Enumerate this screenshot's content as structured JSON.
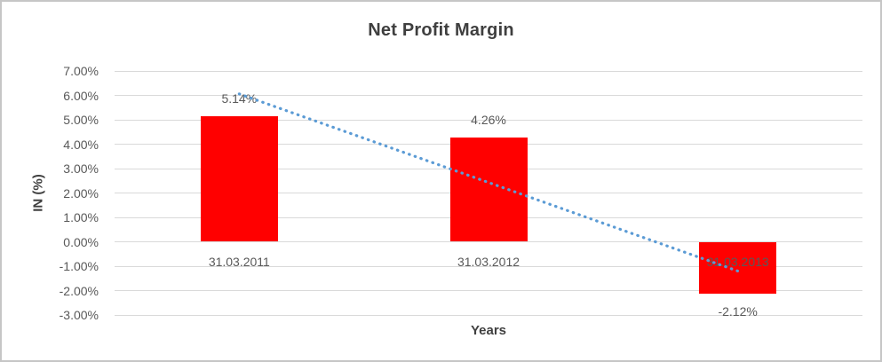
{
  "chart_data": {
    "type": "bar",
    "title": "Net Profit Margin",
    "ylabel": "IN (%)",
    "xlabel": "Years",
    "categories": [
      "31.03.2011",
      "31.03.2012",
      "31.03.2013"
    ],
    "values": [
      5.14,
      4.26,
      -2.12
    ],
    "data_labels": [
      "5.14%",
      "4.26%",
      "-2.12%"
    ],
    "ylim": [
      -3,
      7
    ],
    "ytick_labels": [
      "7.00%",
      "6.00%",
      "5.00%",
      "4.00%",
      "3.00%",
      "2.00%",
      "1.00%",
      "0.00%",
      "-1.00%",
      "-2.00%",
      "-3.00%"
    ],
    "ytick_values": [
      7,
      6,
      5,
      4,
      3,
      2,
      1,
      0,
      -1,
      -2,
      -3
    ],
    "grid": true,
    "legend": "none",
    "bar_color": "#ff0000",
    "gridline_color": "#d9d9d9",
    "tick_text_color": "#595959",
    "title_color": "#3f3f3f",
    "trendline": {
      "type": "linear",
      "style": "dotted",
      "color": "#5b9bd5",
      "value_at_first_category": 6.06,
      "value_at_last_category": -1.2
    }
  }
}
